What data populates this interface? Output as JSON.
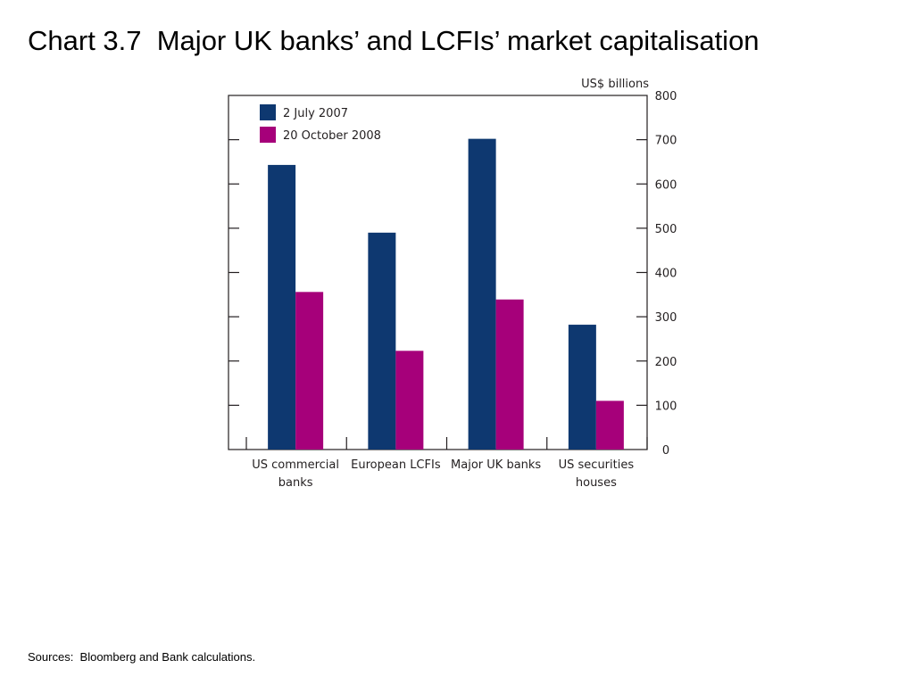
{
  "title": "Chart 3.7  Major UK banks’ and LCFIs’ market capitalisation",
  "source": "Sources:  Bloomberg and Bank calculations.",
  "chart_data": {
    "type": "bar",
    "unit_label": "US$ billions",
    "categories": [
      [
        "US commercial",
        "banks"
      ],
      [
        "European LCFIs"
      ],
      [
        "Major UK banks"
      ],
      [
        "US securities",
        "houses"
      ]
    ],
    "series": [
      {
        "name": "2 July 2007",
        "color": "#0e3870",
        "values": [
          643,
          490,
          702,
          282
        ]
      },
      {
        "name": "20 October 2008",
        "color": "#a6007a",
        "values": [
          356,
          223,
          339,
          110
        ]
      }
    ],
    "ylim": [
      0,
      800
    ],
    "yticks": [
      0,
      100,
      200,
      300,
      400,
      500,
      600,
      700,
      800
    ],
    "grid": false,
    "legend_position": "top-left"
  }
}
